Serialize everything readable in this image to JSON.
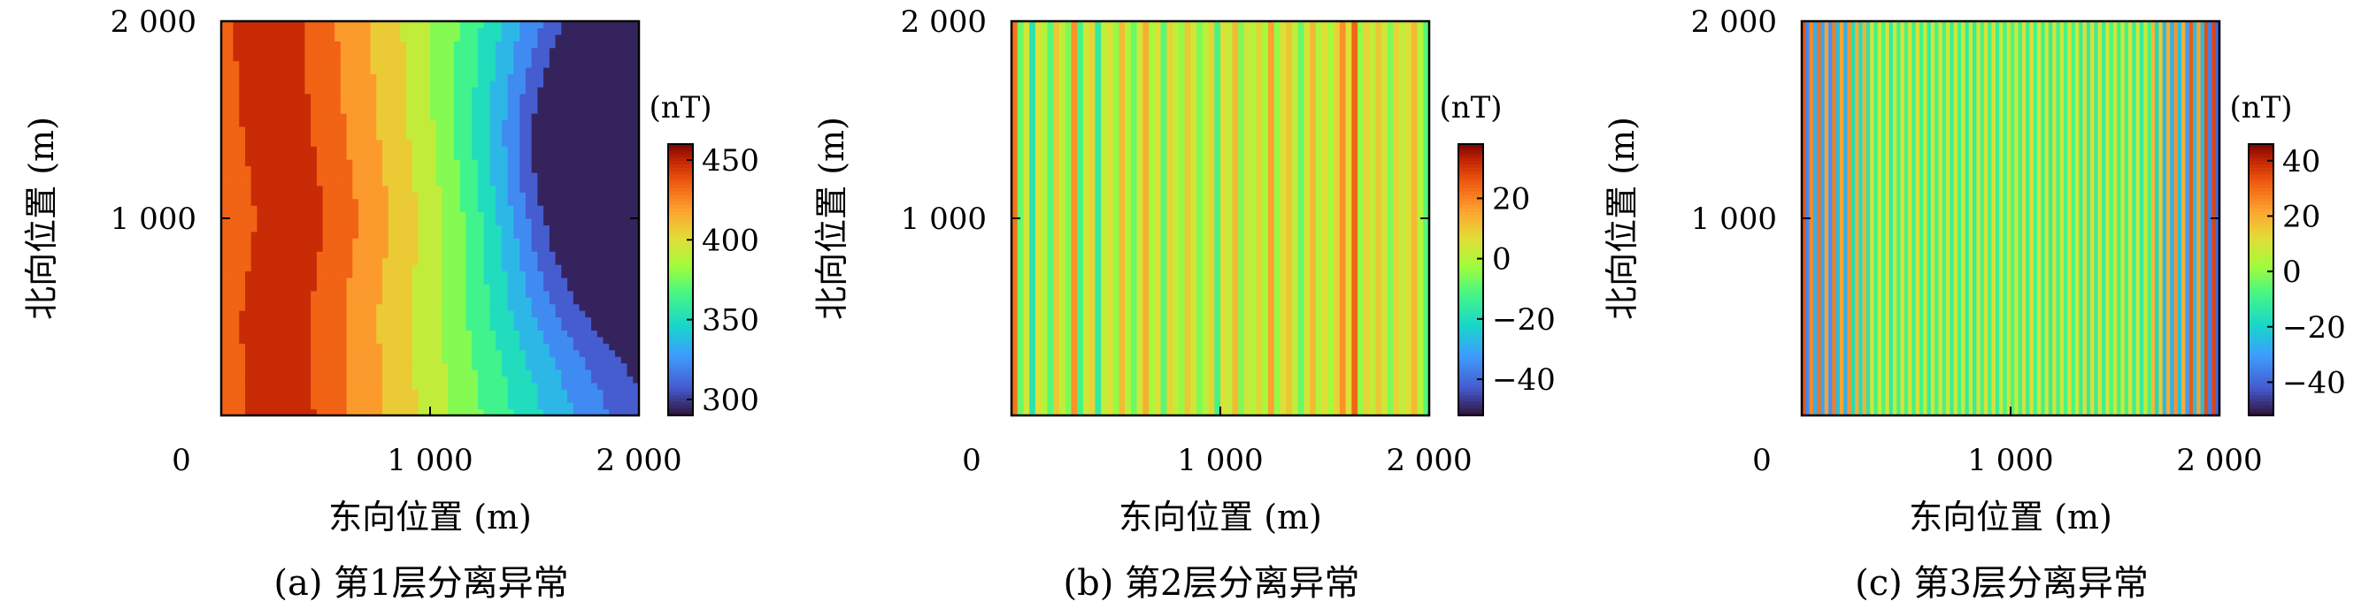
{
  "chart_data": [
    {
      "type": "heatmap",
      "caption": "(a) 第1层分离异常",
      "xlabel": "东向位置 (m)",
      "ylabel": "北向位置 (m)",
      "xlim": [
        0,
        2000
      ],
      "ylim": [
        0,
        2000
      ],
      "x_ticks": [
        "0",
        "1 000",
        "2 000"
      ],
      "y_ticks": [
        "1 000",
        "2 000"
      ],
      "colorbar": {
        "unit": "(nT)",
        "ticks": [
          "300",
          "350",
          "400",
          "450"
        ],
        "tick_values": [
          300,
          350,
          400,
          450
        ],
        "range": [
          290,
          460
        ]
      },
      "grid": false,
      "description_of_field": "smooth regional anomaly: high (~455 nT) along west edge, low (~295 nT) ellipse centered near x=1750, y=1300",
      "field": {
        "high_ridge_x": [
          220,
          260,
          330,
          260,
          280
        ],
        "high_ridge_y": [
          2000,
          1500,
          1000,
          500,
          0
        ],
        "low_center": [
          1760,
          1300
        ],
        "low_radius": [
          200,
          520
        ],
        "max": 455,
        "min": 295
      }
    },
    {
      "type": "heatmap",
      "caption": "(b) 第2层分离异常",
      "xlabel": "东向位置 (m)",
      "ylabel": "北向位置 (m)",
      "xlim": [
        0,
        2000
      ],
      "ylim": [
        0,
        2000
      ],
      "x_ticks": [
        "0",
        "1 000",
        "2 000"
      ],
      "y_ticks": [
        "1 000",
        "2 000"
      ],
      "colorbar": {
        "unit": "(nT)",
        "ticks": [
          "20",
          "0",
          "−20",
          "−40"
        ],
        "tick_values": [
          20,
          0,
          -20,
          -40
        ],
        "range": [
          -52,
          38
        ]
      },
      "grid": false,
      "description_of_field": "vertical stripes varying with east position, mostly between -20 and 10 nT",
      "stripe_values": [
        22,
        -8,
        4,
        -18,
        6,
        0,
        -10,
        10,
        2,
        -6,
        18,
        -12,
        4,
        8,
        -16,
        2,
        6,
        -4,
        12,
        0,
        -8,
        4,
        14,
        -2,
        6,
        -10,
        8,
        2,
        -4,
        10,
        4,
        -6,
        0,
        8,
        -12,
        6,
        2,
        12,
        -6,
        4,
        0,
        8,
        -2,
        16,
        -4,
        6,
        10,
        2,
        -8,
        4,
        12,
        0,
        6,
        -2,
        8,
        18,
        6,
        24,
        -4,
        8,
        2,
        10,
        4,
        -6,
        8,
        2,
        6,
        12,
        0,
        -10
      ]
    },
    {
      "type": "heatmap",
      "caption": "(c) 第3层分离异常",
      "xlabel": "东向位置 (m)",
      "ylabel": "北向位置 (m)",
      "xlim": [
        0,
        2000
      ],
      "ylim": [
        0,
        2000
      ],
      "x_ticks": [
        "0",
        "1 000",
        "2 000"
      ],
      "y_ticks": [
        "1 000",
        "2 000"
      ],
      "colorbar": {
        "unit": "(nT)",
        "ticks": [
          "40",
          "20",
          "0",
          "−20",
          "−40"
        ],
        "tick_values": [
          40,
          20,
          0,
          -20,
          -40
        ],
        "range": [
          -52,
          46
        ]
      },
      "grid": false,
      "description_of_field": "high-frequency vertical stripes; strong alternation near edges, weaker in middle",
      "stripe_count": 110
    }
  ]
}
